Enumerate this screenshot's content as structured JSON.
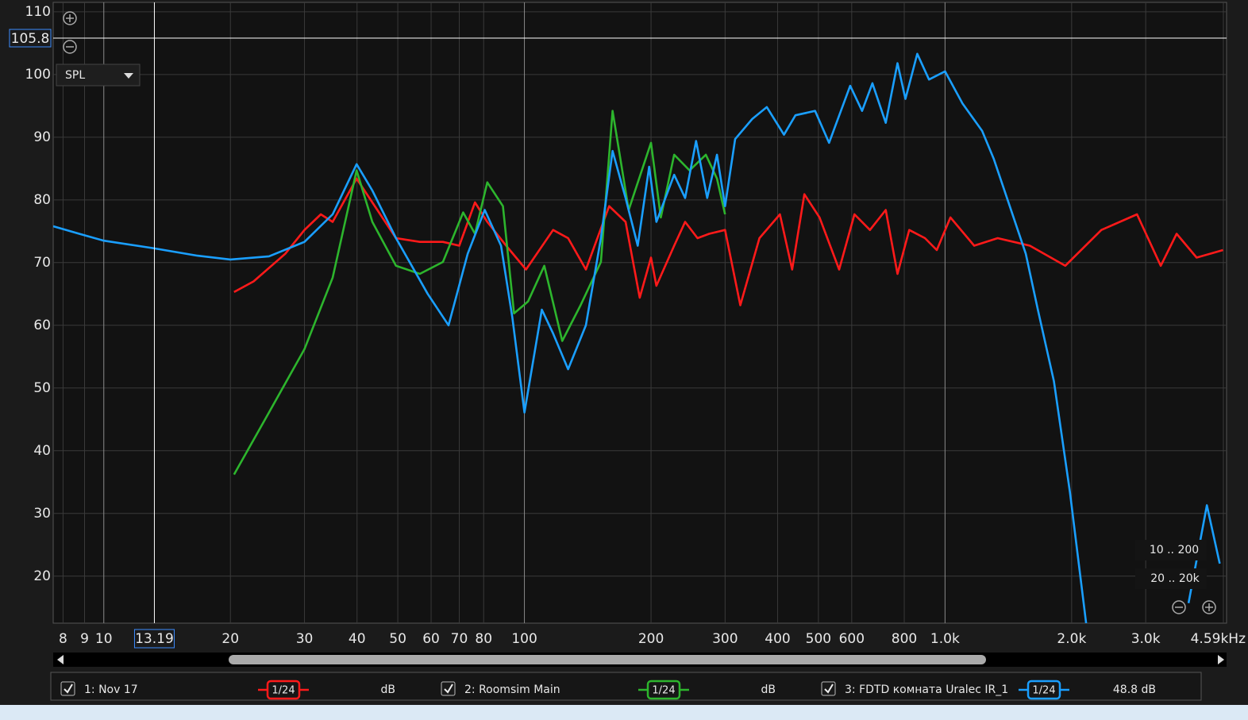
{
  "chart_data": {
    "type": "line",
    "log_x": true,
    "grid": true,
    "xlim": [
      7.58,
      4590
    ],
    "ylim": [
      12.5,
      111.5
    ],
    "xticks": [
      8,
      9,
      10,
      20,
      30,
      40,
      50,
      60,
      70,
      80,
      100,
      200,
      300,
      400,
      500,
      600,
      800,
      {
        "value": 1000,
        "label": "1.0k"
      },
      {
        "value": 2000,
        "label": "2.0k"
      },
      {
        "value": 3000,
        "label": "3.0k"
      },
      {
        "value": 4590,
        "label": "4.59kHz"
      }
    ],
    "yticks": [
      20,
      30,
      40,
      50,
      60,
      70,
      80,
      90,
      100,
      110
    ],
    "cursor": {
      "x": 13.19,
      "y": 105.8
    },
    "measure_selector": "SPL",
    "range_buttons": [
      "10 .. 200",
      "20 .. 20k"
    ],
    "series": [
      {
        "name": "1: Nov 17",
        "color": "#ff1a1a",
        "smoothing": "1/24",
        "level_label": "dB",
        "x": [
          20.4,
          22.7,
          27,
          30,
          32.8,
          35,
          39.9,
          43.5,
          49.5,
          56.4,
          64,
          70,
          76.3,
          81.6,
          90.5,
          100.9,
          117,
          127,
          140,
          159,
          174,
          188,
          200,
          206,
          227,
          241,
          258,
          275,
          300,
          326,
          362,
          405,
          433,
          463,
          503,
          560,
          609,
          663,
          723,
          771,
          822,
          896,
          956,
          1030,
          1173,
          1334,
          1591,
          1931,
          2353,
          2860,
          3258,
          3554,
          3964,
          4580
        ],
        "values": [
          65.3,
          67,
          71.4,
          75.2,
          77.7,
          76.5,
          83.4,
          79.6,
          73.9,
          73.3,
          73.3,
          72.7,
          79.6,
          76.5,
          72.7,
          68.9,
          75.2,
          73.9,
          68.9,
          79,
          76.5,
          64.4,
          70.8,
          66.3,
          72.7,
          76.5,
          73.9,
          74.6,
          75.2,
          63.2,
          73.9,
          77.7,
          68.9,
          80.9,
          77.2,
          68.9,
          77.7,
          75.2,
          78.4,
          68.2,
          75.2,
          73.9,
          72,
          77.2,
          72.7,
          73.9,
          72.7,
          69.5,
          75.2,
          77.7,
          69.5,
          74.6,
          70.8,
          72
        ]
      },
      {
        "name": "2: Roomsim Main",
        "color": "#2db52d",
        "smoothing": "1/24",
        "level_label": "dB",
        "x": [
          20.4,
          24.7,
          30,
          35,
          39.9,
          43.5,
          49.5,
          56.4,
          64,
          71.5,
          76.3,
          81.6,
          88.9,
          94.5,
          102,
          111.5,
          123,
          136,
          152,
          162,
          177,
          200,
          211,
          227,
          247,
          270,
          287,
          300
        ],
        "values": [
          36.2,
          46.1,
          56.2,
          67.6,
          84.7,
          76.5,
          69.5,
          68.2,
          70.1,
          78,
          74.6,
          82.8,
          79,
          61.9,
          63.8,
          69.5,
          57.5,
          63.2,
          70.1,
          94.2,
          78.4,
          89.1,
          77.2,
          87.2,
          84.7,
          87.2,
          83.4,
          77.7
        ]
      },
      {
        "name": "3: FDTD комната Uralec IR_1",
        "color": "#1a9fff",
        "smoothing": "1/24",
        "level_label": "48.8 dB",
        "x": [
          7.58,
          8.74,
          10,
          13.1,
          16.7,
          20,
          24.7,
          30,
          35,
          39.9,
          43.5,
          49.5,
          58.9,
          66,
          73.3,
          80.5,
          88,
          93.6,
          100,
          110,
          117,
          127,
          140,
          152,
          162,
          174,
          186,
          198,
          206,
          227,
          241,
          256,
          272,
          287,
          300,
          317,
          348,
          377,
          414,
          441,
          491,
          530,
          595,
          635,
          672,
          723,
          771,
          805,
          859,
          916,
          1000,
          1100,
          1225,
          1305,
          1425,
          1556,
          1662,
          1815,
          1981,
          2165,
          3000,
          3793,
          4193,
          4500
        ],
        "values": [
          75.8,
          74.6,
          73.5,
          72.3,
          71.1,
          70.5,
          71,
          73.3,
          77.7,
          85.7,
          81.5,
          73.9,
          65,
          60,
          71.4,
          78.4,
          72.7,
          61.3,
          46.1,
          62.5,
          58.7,
          53,
          60,
          73.9,
          87.8,
          80.3,
          72.7,
          85.3,
          76.5,
          84,
          80.3,
          89.4,
          80.3,
          87.2,
          79,
          89.7,
          92.9,
          94.8,
          90.4,
          93.5,
          94.2,
          89.1,
          98.2,
          94.2,
          98.6,
          92.3,
          101.8,
          96.1,
          103.3,
          99.2,
          100.5,
          95.4,
          91,
          86.6,
          79,
          71.4,
          62.5,
          51.1,
          33.4,
          12.5,
          null,
          15.7,
          31.3,
          22
        ]
      }
    ]
  }
}
